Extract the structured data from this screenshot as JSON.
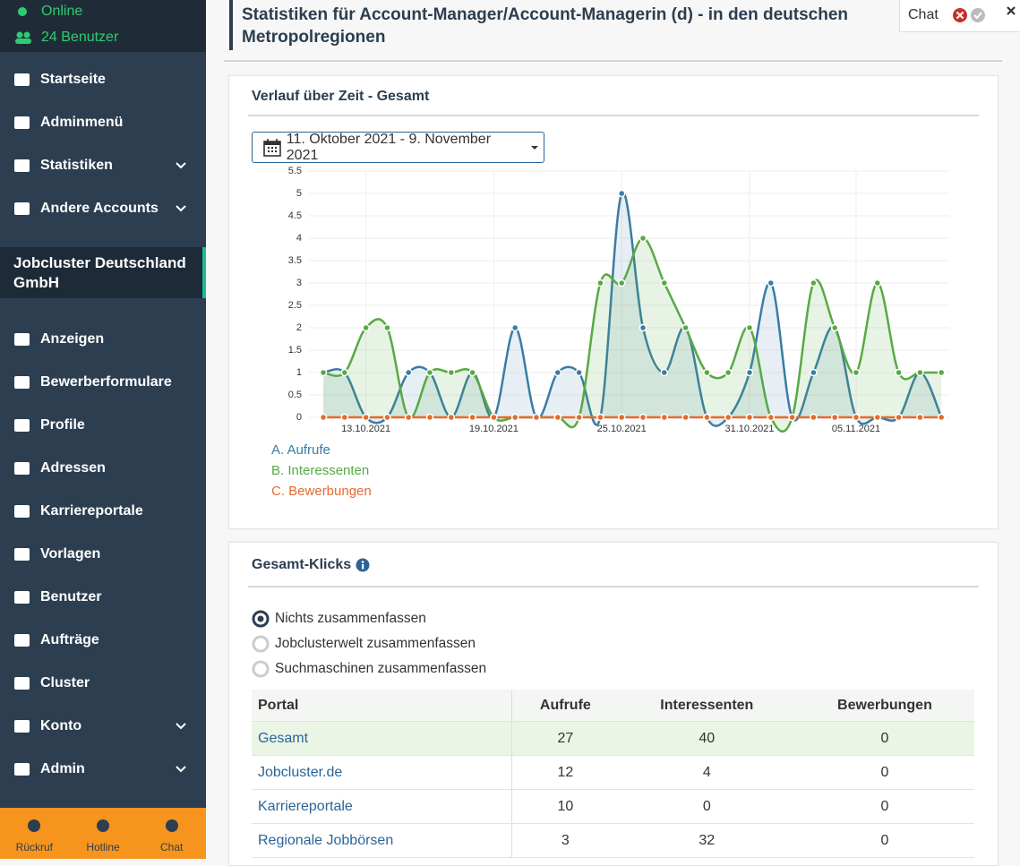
{
  "sidebar": {
    "status": "Online",
    "users": "24 Benutzer",
    "menu": [
      {
        "label": "Startseite",
        "expandable": false
      },
      {
        "label": "Adminmenü",
        "expandable": false
      },
      {
        "label": "Statistiken",
        "expandable": true
      },
      {
        "label": "Andere Accounts",
        "expandable": true
      }
    ],
    "company": "Jobcluster Deutschland GmbH",
    "menu2": [
      {
        "label": "Anzeigen",
        "expandable": false
      },
      {
        "label": "Bewerberformulare",
        "expandable": false
      },
      {
        "label": "Profile",
        "expandable": false
      },
      {
        "label": "Adressen",
        "expandable": false
      },
      {
        "label": "Karriereportale",
        "expandable": false
      },
      {
        "label": "Vorlagen",
        "expandable": false
      },
      {
        "label": "Benutzer",
        "expandable": false
      },
      {
        "label": "Aufträge",
        "expandable": false
      },
      {
        "label": "Cluster",
        "expandable": false
      },
      {
        "label": "Konto",
        "expandable": true
      },
      {
        "label": "Admin",
        "expandable": true
      }
    ],
    "footer": [
      "Rückruf",
      "Hotline",
      "Chat"
    ]
  },
  "header": {
    "title": "Statistiken für Account-Manager/Account-Managerin (d) - in den deutschen Metropolregionen"
  },
  "chat_widget": {
    "label": "Chat"
  },
  "panel1": {
    "title": "Verlauf über Zeit - Gesamt",
    "date_range": "11. Oktober 2021 - 9. November 2021",
    "chart": {
      "type": "line",
      "categories": [
        null,
        null,
        "13.10.2021",
        null,
        null,
        null,
        null,
        null,
        "19.10.2021",
        null,
        null,
        null,
        null,
        null,
        "25.10.2021",
        null,
        null,
        null,
        null,
        null,
        "31.10.2021",
        null,
        null,
        null,
        null,
        "05.11.2021",
        null,
        null,
        null,
        null
      ],
      "series": [
        {
          "name": "A. Aufrufe",
          "color": "#3a7ca5",
          "fill": "rgba(58,124,165,0.12)",
          "values": [
            1,
            1,
            0,
            0,
            1,
            1,
            0,
            1,
            0,
            2,
            0,
            1,
            1,
            0,
            5,
            2,
            1,
            2,
            0,
            0,
            1,
            3,
            0,
            1,
            2,
            0,
            0,
            0,
            1,
            0
          ]
        },
        {
          "name": "B. Interessenten",
          "color": "#58a944",
          "fill": "rgba(88,169,68,0.14)",
          "values": [
            1,
            1,
            2,
            2,
            0,
            1,
            1,
            1,
            0,
            0,
            0,
            0,
            0,
            3,
            3,
            4,
            3,
            2,
            1,
            1,
            2,
            0,
            0,
            3,
            2,
            1,
            3,
            1,
            1,
            1
          ]
        },
        {
          "name": "C. Bewerbungen",
          "color": "#e8692a",
          "fill": "rgba(232,105,42,0.1)",
          "values": [
            0,
            0,
            0,
            0,
            0,
            0,
            0,
            0,
            0,
            0,
            0,
            0,
            0,
            0,
            0,
            0,
            0,
            0,
            0,
            0,
            0,
            0,
            0,
            0,
            0,
            0,
            0,
            0,
            0,
            0
          ]
        }
      ],
      "ylim": [
        0,
        5.5
      ],
      "yticks": [
        0,
        0.5,
        1,
        1.5,
        2,
        2.5,
        3,
        3.5,
        4,
        4.5,
        5,
        5.5
      ],
      "grid": true
    }
  },
  "panel2": {
    "title": "Gesamt-Klicks",
    "options": [
      {
        "label": "Nichts zusammenfassen",
        "selected": true
      },
      {
        "label": "Jobclusterwelt zusammenfassen",
        "selected": false
      },
      {
        "label": "Suchmaschinen zusammenfassen",
        "selected": false
      }
    ],
    "table": {
      "columns": [
        "Portal",
        "Aufrufe",
        "Interessenten",
        "Bewerbungen"
      ],
      "rows": [
        [
          "Gesamt",
          27,
          40,
          0
        ],
        [
          "Jobcluster.de",
          12,
          4,
          0
        ],
        [
          "Karriereportale",
          10,
          0,
          0
        ],
        [
          "Regionale Jobbörsen",
          3,
          32,
          0
        ]
      ]
    }
  }
}
